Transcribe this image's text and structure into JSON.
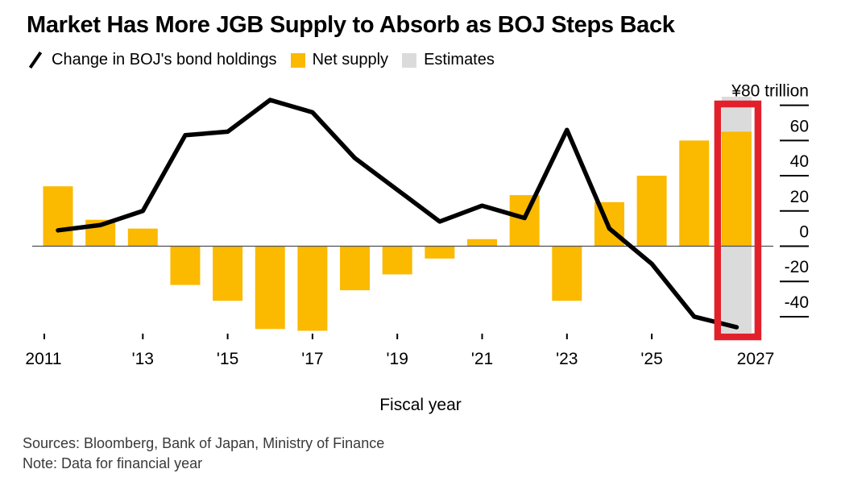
{
  "header": {
    "title": "Market Has More JGB Supply to Absorb as BOJ Steps Back"
  },
  "legend": {
    "items": [
      {
        "label": "Change in BOJ's bond holdings",
        "marker": "line-slash-icon",
        "color": "#000000"
      },
      {
        "label": "Net supply",
        "marker": "square-swatch",
        "color": "#FBB900"
      },
      {
        "label": "Estimates",
        "marker": "square-swatch",
        "color": "#DBDBDB"
      }
    ]
  },
  "chart_data": {
    "type": "bar",
    "subtype": "bar-line-combo",
    "title": "Market Has More JGB Supply to Absorb as BOJ Steps Back",
    "xlabel": "Fiscal year",
    "ylabel": "¥ trillion",
    "ylim": [
      -49,
      85
    ],
    "grid": false,
    "legend_position": "top",
    "x": [
      2011,
      2012,
      2013,
      2014,
      2015,
      2016,
      2017,
      2018,
      2019,
      2020,
      2021,
      2022,
      2023,
      2024,
      2025,
      2026,
      2027
    ],
    "series": [
      {
        "name": "Net supply",
        "type": "bar",
        "color": "#FBB900",
        "values": [
          34,
          15,
          10,
          -22,
          -31,
          -47,
          -48,
          -25,
          -16,
          -7,
          4,
          29,
          -31,
          25,
          40,
          60,
          65
        ]
      },
      {
        "name": "Change in BOJ's bond holdings",
        "type": "line",
        "color": "#000000",
        "values": [
          9,
          12,
          20,
          63,
          65,
          83,
          76,
          50,
          32,
          14,
          23,
          16,
          66,
          10,
          -10,
          -40,
          -46
        ]
      }
    ],
    "estimate_years": [
      2027
    ],
    "estimate_color": "#DBDBDB",
    "annotation_box": {
      "year": 2027,
      "color": "#E2202C"
    },
    "yticks": [
      {
        "v": 80,
        "label": "¥80 trillion"
      },
      {
        "v": 60,
        "label": "60"
      },
      {
        "v": 40,
        "label": "40"
      },
      {
        "v": 20,
        "label": "20"
      },
      {
        "v": 0,
        "label": "0"
      },
      {
        "v": -20,
        "label": "-20"
      },
      {
        "v": -40,
        "label": "-40"
      }
    ],
    "xticks": [
      {
        "year": 2011,
        "label": "2011"
      },
      {
        "year": 2013,
        "label": "'13"
      },
      {
        "year": 2015,
        "label": "'15"
      },
      {
        "year": 2017,
        "label": "'17"
      },
      {
        "year": 2019,
        "label": "'19"
      },
      {
        "year": 2021,
        "label": "'21"
      },
      {
        "year": 2023,
        "label": "'23"
      },
      {
        "year": 2025,
        "label": "'25"
      },
      {
        "year": 2027,
        "label": "2027"
      }
    ]
  },
  "footer": {
    "sources": "Sources: Bloomberg, Bank of Japan, Ministry of Finance",
    "note": "Note: Data for financial year"
  }
}
